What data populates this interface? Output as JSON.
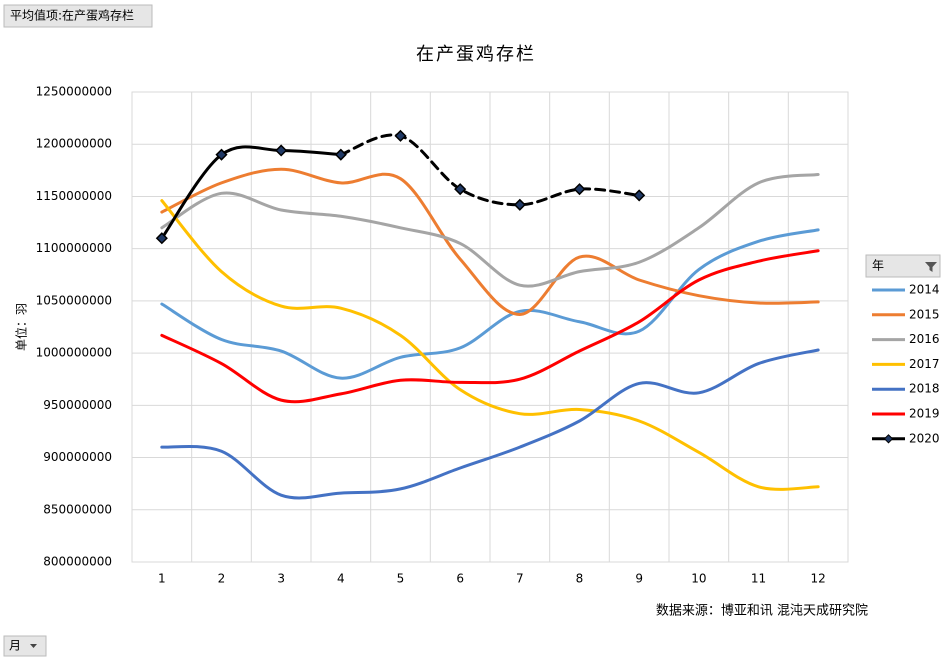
{
  "filter_button": "平均值项:在产蛋鸡存栏",
  "row_button": "月",
  "legend_title": "年",
  "chart_data": {
    "type": "line",
    "title": "在产蛋鸡存栏",
    "y_label": "单位：羽",
    "source": "数据来源：博亚和讯 混沌天成研究院",
    "categories": [
      1,
      2,
      3,
      4,
      5,
      6,
      7,
      8,
      9,
      10,
      11,
      12
    ],
    "ylim": [
      800000000,
      1250000000
    ],
    "yticks": [
      800000000,
      850000000,
      900000000,
      950000000,
      1000000000,
      1050000000,
      1100000000,
      1150000000,
      1200000000,
      1250000000
    ],
    "grid": true,
    "legend": "right",
    "smooth": true,
    "series": [
      {
        "name": "2014",
        "color": "#5b9bd5",
        "values": [
          1047000000,
          1013000000,
          1002000000,
          976000000,
          996000000,
          1005000000,
          1040000000,
          1030000000,
          1021000000,
          1080000000,
          1107000000,
          1118000000
        ]
      },
      {
        "name": "2015",
        "color": "#ed7d31",
        "values": [
          1135000000,
          1163000000,
          1176000000,
          1163000000,
          1167000000,
          1090000000,
          1037000000,
          1092000000,
          1070000000,
          1055000000,
          1048000000,
          1049000000
        ]
      },
      {
        "name": "2016",
        "color": "#a5a5a5",
        "values": [
          1120000000,
          1153000000,
          1137000000,
          1131000000,
          1120000000,
          1105000000,
          1065000000,
          1078000000,
          1087000000,
          1120000000,
          1163000000,
          1171000000
        ]
      },
      {
        "name": "2017",
        "color": "#ffc000",
        "values": [
          1146000000,
          1078000000,
          1045000000,
          1043000000,
          1017000000,
          965000000,
          942000000,
          946000000,
          935000000,
          905000000,
          872000000,
          872000000
        ]
      },
      {
        "name": "2018",
        "color": "#4472c4",
        "values": [
          910000000,
          906000000,
          864000000,
          866000000,
          870000000,
          890000000,
          910000000,
          935000000,
          971000000,
          962000000,
          990000000,
          1003000000
        ]
      },
      {
        "name": "2019",
        "color": "#ff0000",
        "values": [
          1017000000,
          990000000,
          955000000,
          961000000,
          974000000,
          972000000,
          975000000,
          1002000000,
          1030000000,
          1070000000,
          1088000000,
          1098000000
        ]
      },
      {
        "name": "2020",
        "color": "#000000",
        "marker": "diamond",
        "dashed_from": 5,
        "values": [
          1110000000,
          1190000000,
          1194000000,
          1190000000,
          1208000000,
          1157000000,
          1142000000,
          1157000000,
          1151000000,
          null,
          null,
          null
        ]
      }
    ]
  }
}
